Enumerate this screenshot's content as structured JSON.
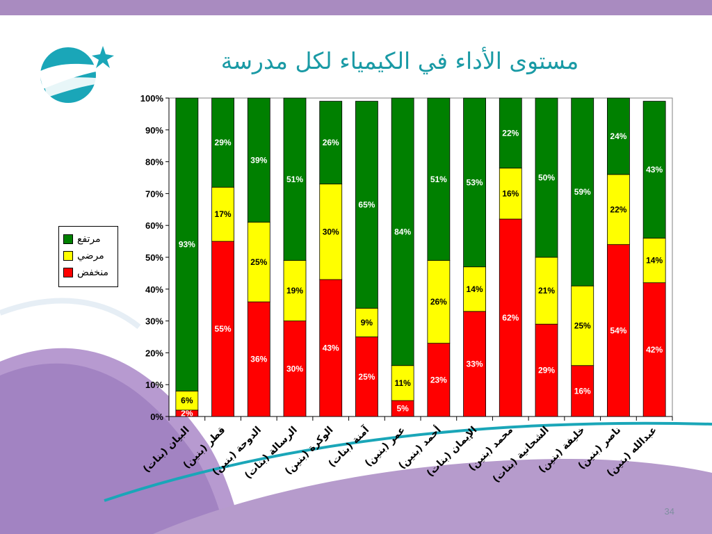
{
  "page_number": "34",
  "colors": {
    "accent": "#1a9aa5",
    "band": "#a98bc0"
  },
  "chart_data": {
    "type": "bar",
    "stacked": true,
    "title": "مستوى الأداء في الكيمياء لكل مدرسة",
    "ylim": [
      0,
      100
    ],
    "y_ticks": [
      "0%",
      "10%",
      "20%",
      "30%",
      "40%",
      "50%",
      "60%",
      "70%",
      "80%",
      "90%",
      "100%"
    ],
    "grid": false,
    "legend_position": "left",
    "categories": [
      "البيان (بنات)",
      "قطر (بنين)",
      "الدوحة (بنين)",
      "الرسالة (بنات)",
      "الوكرة (بنين)",
      "آمنة (بنات)",
      "عمر (بنين)",
      "أحمد (بنين)",
      "الإيمان (بنات)",
      "محمد (بنين)",
      "الشحانية (بنات)",
      "خليفة (بنين)",
      "ناصر (بنين)",
      "عبدالله (بنين)"
    ],
    "series": [
      {
        "name": "منخفض",
        "color": "#ff0000",
        "values": [
          2,
          55,
          36,
          30,
          43,
          25,
          5,
          23,
          33,
          62,
          29,
          16,
          54,
          42
        ],
        "labels": [
          "2%",
          "55%",
          "36%",
          "30%",
          "43%",
          "25%",
          "5%",
          "23%",
          "33%",
          "62%",
          "29%",
          "16%",
          "54%",
          "42%"
        ]
      },
      {
        "name": "مرضي",
        "color": "#ffff00",
        "values": [
          6,
          17,
          25,
          19,
          30,
          9,
          11,
          26,
          14,
          16,
          21,
          25,
          22,
          14
        ],
        "labels": [
          "6%",
          "17%",
          "25%",
          "19%",
          "30%",
          "9%",
          "11%",
          "26%",
          "14%",
          "16%",
          "21%",
          "25%",
          "22%",
          "14%"
        ]
      },
      {
        "name": "مرتفع",
        "color": "#008000",
        "values": [
          93,
          29,
          39,
          51,
          26,
          65,
          84,
          51,
          53,
          22,
          50,
          59,
          24,
          43
        ],
        "labels": [
          "93%",
          "29%",
          "39%",
          "51%",
          "26%",
          "65%",
          "84%",
          "51%",
          "53%",
          "22%",
          "50%",
          "59%",
          "24%",
          "43%"
        ]
      }
    ]
  }
}
